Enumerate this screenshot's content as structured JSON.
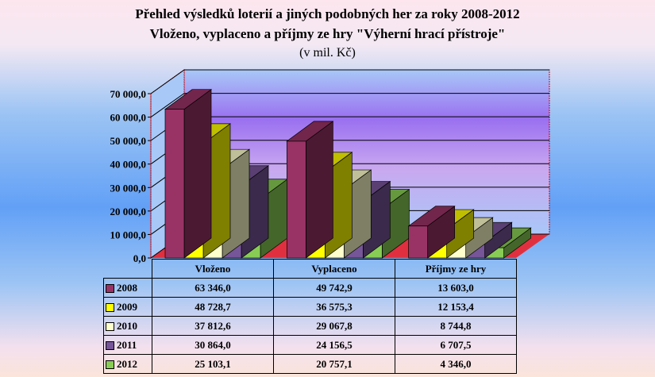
{
  "title_line1": "Přehled výsledků loterií a jiných podobných her za roky 2008-2012",
  "title_line2": "Vloženo, vyplaceno a příjmy ze hry \"Výherní hrací přístroje\"",
  "title_line3": "(v mil. Kč)",
  "chart_data": {
    "type": "bar",
    "title": "Přehled výsledků loterií a jiných podobných her za roky 2008-2012",
    "subtitle": "Vloženo, vyplaceno a příjmy ze hry \"Výherní hrací přístroje\" (v mil. Kč)",
    "categories": [
      "Vloženo",
      "Vyplaceno",
      "Příjmy ze hry"
    ],
    "series": [
      {
        "name": "2008",
        "color": "#993366",
        "values": [
          63346.0,
          49742.9,
          13603.0
        ],
        "labels": [
          "63 346,0",
          "49 742,9",
          "13 603,0"
        ]
      },
      {
        "name": "2009",
        "color": "#ffff00",
        "values": [
          48728.7,
          36575.3,
          12153.4
        ],
        "labels": [
          "48 728,7",
          "36 575,3",
          "12 153,4"
        ]
      },
      {
        "name": "2010",
        "color": "#ffffcc",
        "values": [
          37812.6,
          29067.8,
          8744.8
        ],
        "labels": [
          "37 812,6",
          "29 067,8",
          "8 744,8"
        ]
      },
      {
        "name": "2011",
        "color": "#775599",
        "values": [
          30864.0,
          24156.5,
          6707.5
        ],
        "labels": [
          "30 864,0",
          "24 156,5",
          "6 707,5"
        ]
      },
      {
        "name": "2012",
        "color": "#88cc55",
        "values": [
          25103.1,
          20757.1,
          4346.0
        ],
        "labels": [
          "25 103,1",
          "20 757,1",
          "4 346,0"
        ]
      }
    ],
    "yticks": [
      "0,0",
      "10 000,0",
      "20 000,0",
      "30 000,0",
      "40 000,0",
      "50 000,0",
      "60 000,0",
      "70 000,0"
    ],
    "ylim": [
      0,
      70000
    ],
    "grid": true,
    "legend": "data-table"
  }
}
